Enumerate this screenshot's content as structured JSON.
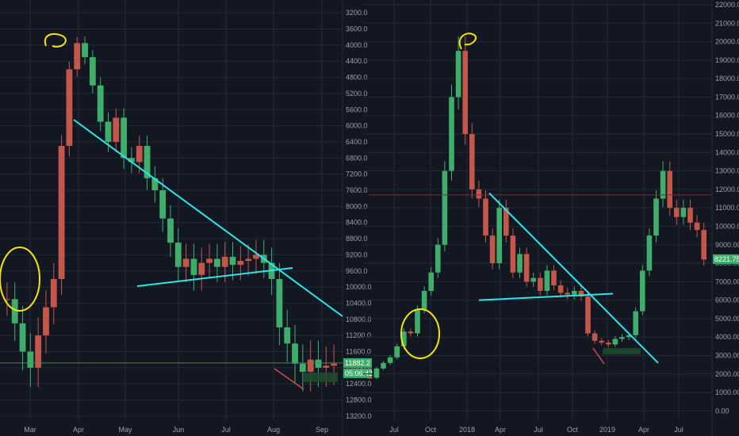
{
  "chart_data": [
    {
      "type": "candlestick",
      "y_axis_inverted": true,
      "ylim": [
        3000,
        13300
      ],
      "y_ticks": [
        "3200.0",
        "3600.0",
        "4000.0",
        "4400.0",
        "4800.0",
        "5200.0",
        "5600.0",
        "6000.0",
        "6400.0",
        "6800.0",
        "7200.0",
        "7600.0",
        "8000.0",
        "8400.0",
        "8800.0",
        "9200.0",
        "9600.0",
        "10000.0",
        "10400.0",
        "10800.0",
        "11200.0",
        "11600.0",
        "12000.0",
        "12400.0",
        "12800.0",
        "13200.0"
      ],
      "x_ticks": [
        "Mar",
        "Apr",
        "May",
        "Jun",
        "Jul",
        "Aug",
        "Sep"
      ],
      "grid": true,
      "price_label": "11882.2",
      "countdown_label": "05:06:42",
      "close": [
        10300,
        10900,
        11600,
        12000,
        11200,
        10500,
        9800,
        6500,
        4600,
        3950,
        4300,
        5000,
        5900,
        6400,
        5800,
        6800,
        6900,
        6500,
        7300,
        7600,
        8300,
        8900,
        9500,
        9300,
        9700,
        9400,
        9300,
        9500,
        9250,
        9450,
        9350,
        9300,
        9200,
        9400,
        9800,
        11000,
        11400,
        11900,
        12100,
        11800,
        12000,
        11950,
        11900
      ],
      "annotations": [
        {
          "kind": "trendline",
          "color": "#2ee6e6",
          "from": {
            "x": "Mar-end",
            "y": 5900
          },
          "to": {
            "x": "Sep-end",
            "y": 10800
          }
        },
        {
          "kind": "trendline",
          "color": "#2ee6e6",
          "from": {
            "x": "May",
            "y": 10000
          },
          "to": {
            "x": "Aug",
            "y": 9600
          }
        },
        {
          "kind": "circle",
          "color": "#f5e50a",
          "label": "top"
        },
        {
          "kind": "circle",
          "color": "#f5e50a",
          "label": "left base"
        },
        {
          "kind": "hline",
          "color": "#3d8f5a",
          "y": 11882.2
        }
      ]
    },
    {
      "type": "candlestick",
      "ylim": [
        -500,
        22000
      ],
      "y_ticks": [
        "0.00",
        "1000.00",
        "2000.00",
        "3000.00",
        "4000.00",
        "5000.00",
        "6000.00",
        "7000.00",
        "8000.00",
        "9000.00",
        "10000.00",
        "11000.00",
        "12000.00",
        "13000.00",
        "14000.00",
        "15000.00",
        "16000.00",
        "17000.00",
        "18000.00",
        "19000.00",
        "20000.00",
        "21000.00",
        "22000.00"
      ],
      "x_ticks": [
        "Jul",
        "Oct",
        "2018",
        "Apr",
        "Jul",
        "Oct",
        "2019",
        "Apr",
        "Jul"
      ],
      "grid": true,
      "price_label": "8221.75",
      "close": [
        1800,
        2300,
        2600,
        2900,
        3500,
        4300,
        4200,
        5500,
        6500,
        7500,
        9000,
        13000,
        17000,
        19500,
        15000,
        12000,
        11500,
        9500,
        8000,
        11000,
        9500,
        7500,
        8500,
        7000,
        7200,
        6500,
        7600,
        6800,
        6400,
        6300,
        6500,
        6200,
        4200,
        3800,
        3700,
        3600,
        3900,
        4000,
        4100,
        5400,
        7600,
        9500,
        11500,
        13000,
        11000,
        10500,
        11000,
        10200,
        9800,
        8200
      ],
      "annotations": [
        {
          "kind": "trendline",
          "color": "#2ee6e6",
          "from": {
            "x": "2018-Feb",
            "y": 11800
          },
          "to": {
            "x": "2019-Jun",
            "y": 2600
          }
        },
        {
          "kind": "trendline",
          "color": "#2ee6e6",
          "from": {
            "x": "2018-Mar",
            "y": 6000
          },
          "to": {
            "x": "2018-Nov",
            "y": 6350
          }
        },
        {
          "kind": "circle",
          "color": "#f5e50a",
          "label": "top"
        },
        {
          "kind": "circle",
          "color": "#f5e50a",
          "label": "Sep base"
        },
        {
          "kind": "hline",
          "color": "#7a2e2e",
          "y": 11700
        }
      ]
    }
  ]
}
